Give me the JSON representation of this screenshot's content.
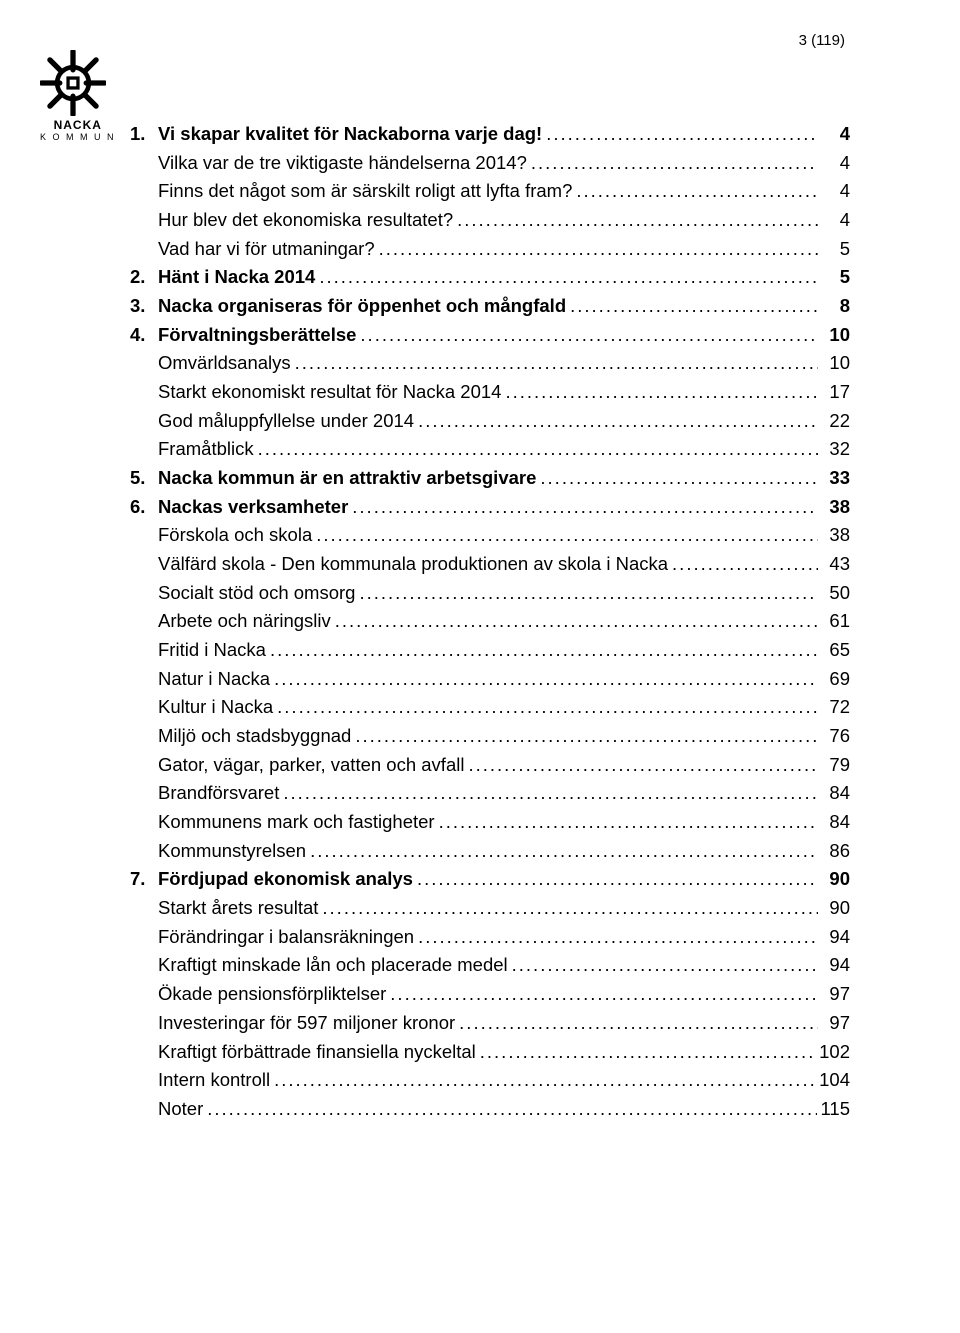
{
  "page_number_label": "3 (119)",
  "logo": {
    "main": "NACKA",
    "sub": "K O M M U N"
  },
  "toc": [
    {
      "level": 1,
      "num": "1.",
      "label": "Vi skapar kvalitet för Nackaborna varje dag!",
      "page": "4"
    },
    {
      "level": 2,
      "label": "Vilka var de tre viktigaste händelserna 2014?",
      "page": "4"
    },
    {
      "level": 2,
      "label": "Finns det något som är särskilt roligt att lyfta fram?",
      "page": "4"
    },
    {
      "level": 2,
      "label": "Hur blev det ekonomiska resultatet?",
      "page": "4"
    },
    {
      "level": 2,
      "label": "Vad har vi för utmaningar?",
      "page": "5"
    },
    {
      "level": 1,
      "num": "2.",
      "label": "Hänt i Nacka 2014",
      "page": "5"
    },
    {
      "level": 1,
      "num": "3.",
      "label": "Nacka organiseras för öppenhet och mångfald",
      "page": "8"
    },
    {
      "level": 1,
      "num": "4.",
      "label": "Förvaltningsberättelse",
      "page": "10"
    },
    {
      "level": 2,
      "label": "Omvärldsanalys",
      "page": "10"
    },
    {
      "level": 2,
      "label": "Starkt ekonomiskt resultat för Nacka 2014",
      "page": "17"
    },
    {
      "level": 2,
      "label": "God måluppfyllelse under 2014",
      "page": "22"
    },
    {
      "level": 2,
      "label": "Framåtblick",
      "page": "32"
    },
    {
      "level": 1,
      "num": "5.",
      "label": "Nacka kommun är en attraktiv arbetsgivare",
      "page": "33"
    },
    {
      "level": 1,
      "num": "6.",
      "label": "Nackas verksamheter",
      "page": "38"
    },
    {
      "level": 2,
      "label": "Förskola och skola",
      "page": "38"
    },
    {
      "level": 2,
      "label": "Välfärd skola - Den kommunala produktionen av skola i Nacka",
      "page": "43"
    },
    {
      "level": 2,
      "label": "Socialt stöd och omsorg",
      "page": "50"
    },
    {
      "level": 2,
      "label": "Arbete och näringsliv",
      "page": "61"
    },
    {
      "level": 2,
      "label": "Fritid i Nacka",
      "page": "65"
    },
    {
      "level": 2,
      "label": "Natur i Nacka",
      "page": "69"
    },
    {
      "level": 2,
      "label": "Kultur i Nacka",
      "page": "72"
    },
    {
      "level": 2,
      "label": "Miljö och stadsbyggnad",
      "page": "76"
    },
    {
      "level": 2,
      "label": "Gator, vägar, parker, vatten och avfall",
      "page": "79"
    },
    {
      "level": 2,
      "label": "Brandförsvaret",
      "page": "84"
    },
    {
      "level": 2,
      "label": "Kommunens mark och fastigheter",
      "page": "84"
    },
    {
      "level": 2,
      "label": "Kommunstyrelsen",
      "page": "86"
    },
    {
      "level": 1,
      "num": "7.",
      "label": "Fördjupad ekonomisk analys",
      "page": "90"
    },
    {
      "level": 2,
      "label": "Starkt årets resultat",
      "page": "90"
    },
    {
      "level": 2,
      "label": "Förändringar i balansräkningen",
      "page": "94"
    },
    {
      "level": 2,
      "label": "Kraftigt minskade lån och placerade medel",
      "page": "94"
    },
    {
      "level": 2,
      "label": "Ökade pensionsförpliktelser",
      "page": "97"
    },
    {
      "level": 2,
      "label": "Investeringar för 597 miljoner kronor",
      "page": "97"
    },
    {
      "level": 2,
      "label": "Kraftigt förbättrade finansiella nyckeltal",
      "page": "102"
    },
    {
      "level": 2,
      "label": "Intern kontroll",
      "page": "104"
    },
    {
      "level": 2,
      "label": "Noter",
      "page": "115"
    }
  ]
}
